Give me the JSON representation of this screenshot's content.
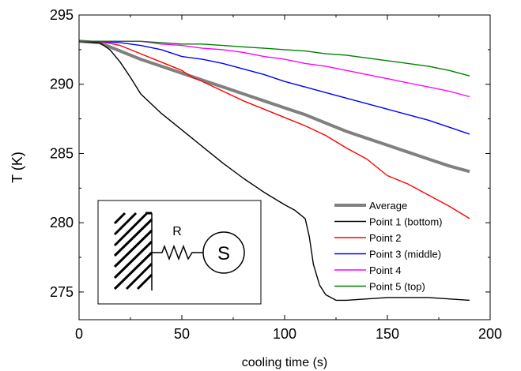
{
  "chart_data": {
    "type": "line",
    "title": "",
    "xlabel": "cooling time (s)",
    "ylabel": "T (K)",
    "xlim": [
      0,
      200
    ],
    "ylim": [
      273,
      295
    ],
    "xticks": [
      0,
      50,
      100,
      150,
      200
    ],
    "yticks": [
      275,
      280,
      285,
      290,
      295
    ],
    "grid": false,
    "legend_position": "bottom-right",
    "series": [
      {
        "name": "Average",
        "color": "#808080",
        "points": [
          [
            0,
            293.1
          ],
          [
            10,
            293.0
          ],
          [
            20,
            292.4
          ],
          [
            30,
            291.8
          ],
          [
            40,
            291.3
          ],
          [
            50,
            290.8
          ],
          [
            60,
            290.3
          ],
          [
            70,
            289.8
          ],
          [
            80,
            289.3
          ],
          [
            90,
            288.8
          ],
          [
            100,
            288.3
          ],
          [
            110,
            287.8
          ],
          [
            120,
            287.2
          ],
          [
            130,
            286.6
          ],
          [
            140,
            286.1
          ],
          [
            150,
            285.6
          ],
          [
            160,
            285.1
          ],
          [
            170,
            284.6
          ],
          [
            180,
            284.1
          ],
          [
            190,
            283.7
          ]
        ]
      },
      {
        "name": "Point 1 (bottom)",
        "color": "#000000",
        "points": [
          [
            0,
            293.1
          ],
          [
            10,
            293.0
          ],
          [
            15,
            292.5
          ],
          [
            20,
            291.6
          ],
          [
            25,
            290.5
          ],
          [
            30,
            289.3
          ],
          [
            40,
            287.9
          ],
          [
            50,
            286.7
          ],
          [
            60,
            285.5
          ],
          [
            70,
            284.3
          ],
          [
            80,
            283.2
          ],
          [
            90,
            282.2
          ],
          [
            100,
            281.3
          ],
          [
            105,
            280.9
          ],
          [
            110,
            280.3
          ],
          [
            112,
            279.0
          ],
          [
            114,
            277.0
          ],
          [
            117,
            275.5
          ],
          [
            120,
            274.8
          ],
          [
            125,
            274.4
          ],
          [
            130,
            274.4
          ],
          [
            140,
            274.5
          ],
          [
            150,
            274.6
          ],
          [
            160,
            274.6
          ],
          [
            170,
            274.6
          ],
          [
            180,
            274.5
          ],
          [
            190,
            274.4
          ]
        ]
      },
      {
        "name": "Point 2",
        "color": "#ff0000",
        "points": [
          [
            0,
            293.1
          ],
          [
            10,
            293.1
          ],
          [
            20,
            292.8
          ],
          [
            30,
            292.2
          ],
          [
            40,
            291.6
          ],
          [
            50,
            291.0
          ],
          [
            55,
            290.5
          ],
          [
            60,
            290.2
          ],
          [
            70,
            289.5
          ],
          [
            80,
            288.8
          ],
          [
            90,
            288.2
          ],
          [
            100,
            287.6
          ],
          [
            110,
            287.0
          ],
          [
            120,
            286.3
          ],
          [
            130,
            285.4
          ],
          [
            140,
            284.6
          ],
          [
            150,
            283.4
          ],
          [
            160,
            282.8
          ],
          [
            170,
            282.0
          ],
          [
            180,
            281.2
          ],
          [
            190,
            280.3
          ]
        ]
      },
      {
        "name": "Point 3 (middle)",
        "color": "#0000ff",
        "points": [
          [
            0,
            293.1
          ],
          [
            10,
            293.1
          ],
          [
            20,
            293.0
          ],
          [
            30,
            292.8
          ],
          [
            40,
            292.5
          ],
          [
            50,
            292.0
          ],
          [
            60,
            291.8
          ],
          [
            70,
            291.5
          ],
          [
            80,
            291.1
          ],
          [
            90,
            290.7
          ],
          [
            100,
            290.2
          ],
          [
            110,
            289.8
          ],
          [
            120,
            289.4
          ],
          [
            130,
            289.0
          ],
          [
            140,
            288.6
          ],
          [
            150,
            288.2
          ],
          [
            160,
            287.8
          ],
          [
            170,
            287.4
          ],
          [
            180,
            286.9
          ],
          [
            190,
            286.4
          ]
        ]
      },
      {
        "name": "Point 4",
        "color": "#ff00ff",
        "points": [
          [
            0,
            293.1
          ],
          [
            10,
            293.1
          ],
          [
            20,
            293.1
          ],
          [
            30,
            293.1
          ],
          [
            40,
            292.9
          ],
          [
            50,
            292.8
          ],
          [
            60,
            292.6
          ],
          [
            70,
            292.5
          ],
          [
            80,
            292.3
          ],
          [
            90,
            292.0
          ],
          [
            100,
            291.8
          ],
          [
            110,
            291.5
          ],
          [
            120,
            291.3
          ],
          [
            130,
            291.0
          ],
          [
            140,
            290.7
          ],
          [
            150,
            290.4
          ],
          [
            160,
            290.1
          ],
          [
            170,
            289.8
          ],
          [
            180,
            289.5
          ],
          [
            190,
            289.1
          ]
        ]
      },
      {
        "name": "Point 5 (top)",
        "color": "#008000",
        "points": [
          [
            0,
            293.1
          ],
          [
            10,
            293.1
          ],
          [
            20,
            293.1
          ],
          [
            30,
            293.1
          ],
          [
            40,
            293.0
          ],
          [
            50,
            292.9
          ],
          [
            60,
            292.9
          ],
          [
            70,
            292.8
          ],
          [
            80,
            292.7
          ],
          [
            90,
            292.6
          ],
          [
            100,
            292.5
          ],
          [
            110,
            292.4
          ],
          [
            120,
            292.2
          ],
          [
            130,
            292.1
          ],
          [
            140,
            291.9
          ],
          [
            150,
            291.7
          ],
          [
            160,
            291.5
          ],
          [
            170,
            291.3
          ],
          [
            180,
            291.0
          ],
          [
            190,
            290.6
          ]
        ]
      }
    ],
    "inset": {
      "resistor_label": "R",
      "source_label": "S"
    }
  }
}
